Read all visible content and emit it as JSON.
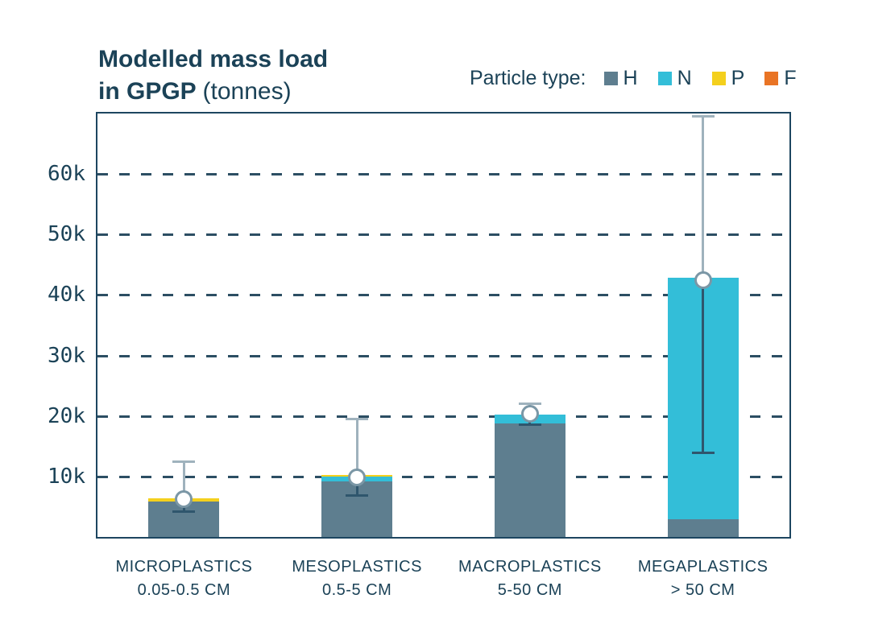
{
  "title": {
    "line1": "Modelled mass load",
    "line2_bold": "in GPGP",
    "line2_regular": "(tonnes)"
  },
  "legend": {
    "label": "Particle type:",
    "items": [
      {
        "label": "H",
        "color": "#5e7e8f"
      },
      {
        "label": "N",
        "color": "#33bed8"
      },
      {
        "label": "P",
        "color": "#f4d01d"
      },
      {
        "label": "F",
        "color": "#e97425"
      }
    ]
  },
  "colors": {
    "text_navy": "#1b4257",
    "plot_border": "#1d4660",
    "gridline": "#2c4e63",
    "whisker_upper": "#9fb2bd",
    "whisker_lower": "#2f566d",
    "marker_fill": "#ffffff",
    "marker_stroke": "#7b97a6"
  },
  "chart_data": {
    "type": "bar",
    "stacked": true,
    "title": "Modelled mass load in GPGP (tonnes)",
    "units": "tonnes",
    "grid": "dashed-horizontal",
    "legend_position": "top-right",
    "ylim": [
      0,
      70000
    ],
    "y_ticks": [
      {
        "value": 10000,
        "label": "10k"
      },
      {
        "value": 20000,
        "label": "20k"
      },
      {
        "value": 30000,
        "label": "30k"
      },
      {
        "value": 40000,
        "label": "40k"
      },
      {
        "value": 50000,
        "label": "50k"
      },
      {
        "value": 60000,
        "label": "60k"
      }
    ],
    "categories": [
      {
        "label": "MICROPLASTICS",
        "sublabel": "0.05-0.5 CM"
      },
      {
        "label": "MESOPLASTICS",
        "sublabel": "0.5-5 CM"
      },
      {
        "label": "MACROPLASTICS",
        "sublabel": "5-50 CM"
      },
      {
        "label": "MEGAPLASTICS",
        "sublabel": "> 50 CM"
      }
    ],
    "series": [
      {
        "name": "H",
        "color": "#5e7e8f",
        "values": [
          5800,
          9150,
          18700,
          2900
        ]
      },
      {
        "name": "N",
        "color": "#33bed8",
        "values": [
          0,
          800,
          1500,
          39900
        ]
      },
      {
        "name": "P",
        "color": "#f4d01d",
        "values": [
          650,
          300,
          0,
          0
        ]
      },
      {
        "name": "F",
        "color": "#e97425",
        "values": [
          0,
          0,
          0,
          0
        ]
      }
    ],
    "error_bars": {
      "point": [
        6200,
        9900,
        20300,
        42500
      ],
      "low": [
        4200,
        6900,
        18500,
        13900
      ],
      "high": [
        12400,
        19500,
        22000,
        69500
      ]
    }
  }
}
